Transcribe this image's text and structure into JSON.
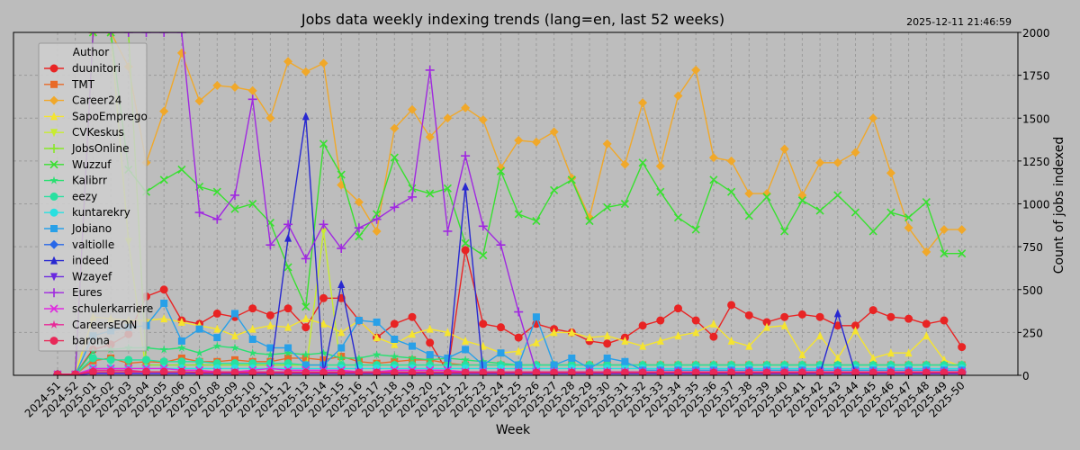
{
  "chart_data": {
    "type": "line",
    "title": "Jobs data weekly indexing trends (lang=en, last 52 weeks)",
    "timestamp": "2025-12-11 21:46:59",
    "xlabel": "Week",
    "ylabel": "Count of jobs indexed",
    "ylim": [
      0,
      2000
    ],
    "yticks": [
      0,
      250,
      500,
      750,
      1000,
      1250,
      1500,
      1750,
      2000
    ],
    "grid": true,
    "legend_title": "Author",
    "legend_position": "upper-left",
    "categories": [
      "2024-51",
      "2024-52",
      "2025-01",
      "2025-02",
      "2025-03",
      "2025-04",
      "2025-05",
      "2025-06",
      "2025-07",
      "2025-08",
      "2025-09",
      "2025-10",
      "2025-11",
      "2025-12",
      "2025-13",
      "2025-14",
      "2025-15",
      "2025-16",
      "2025-17",
      "2025-18",
      "2025-19",
      "2025-20",
      "2025-21",
      "2025-22",
      "2025-23",
      "2025-24",
      "2025-25",
      "2025-26",
      "2025-27",
      "2025-28",
      "2025-29",
      "2025-30",
      "2025-31",
      "2025-32",
      "2025-33",
      "2025-34",
      "2025-35",
      "2025-36",
      "2025-37",
      "2025-38",
      "2025-39",
      "2025-40",
      "2025-41",
      "2025-42",
      "2025-43",
      "2025-44",
      "2025-45",
      "2025-46",
      "2025-47",
      "2025-48",
      "2025-49",
      "2025-50"
    ],
    "series": [
      {
        "name": "duunitori",
        "color": "#e82424",
        "marker": "circle",
        "values": [
          5,
          5,
          150,
          180,
          240,
          460,
          500,
          320,
          300,
          360,
          340,
          390,
          350,
          390,
          280,
          450,
          450,
          320,
          220,
          300,
          340,
          190,
          20,
          730,
          300,
          280,
          220,
          300,
          270,
          250,
          200,
          185,
          220,
          290,
          320,
          390,
          320,
          225,
          410,
          350,
          310,
          340,
          355,
          340,
          290,
          290,
          380,
          340,
          330,
          300,
          320,
          165
        ]
      },
      {
        "name": "TMT",
        "color": "#e86a28",
        "marker": "square",
        "values": [
          5,
          5,
          85,
          100,
          70,
          80,
          75,
          100,
          80,
          80,
          90,
          80,
          80,
          100,
          100,
          90,
          110,
          80,
          70,
          80,
          90,
          90,
          70,
          60,
          60,
          60,
          60,
          60,
          60,
          60,
          60,
          60,
          60,
          60,
          60,
          60,
          60,
          60,
          60,
          60,
          60,
          60,
          60,
          60,
          60,
          60,
          60,
          60,
          60,
          60,
          60,
          60
        ]
      },
      {
        "name": "Career24",
        "color": "#f0a82a",
        "marker": "diamond",
        "values": [
          5,
          5,
          2000,
          2000,
          1800,
          1240,
          1540,
          1880,
          1600,
          1690,
          1680,
          1660,
          1500,
          1830,
          1770,
          1820,
          1110,
          1010,
          840,
          1440,
          1550,
          1390,
          1500,
          1560,
          1490,
          1210,
          1370,
          1360,
          1420,
          1150,
          920,
          1350,
          1230,
          1590,
          1220,
          1630,
          1780,
          1270,
          1250,
          1060,
          1060,
          1320,
          1050,
          1240,
          1240,
          1300,
          1500,
          1180,
          860,
          720,
          850,
          850
        ]
      },
      {
        "name": "SapoEmprego",
        "color": "#f5e430",
        "marker": "triangle-up",
        "values": [
          5,
          5,
          340,
          330,
          320,
          320,
          330,
          310,
          290,
          270,
          230,
          270,
          290,
          280,
          330,
          300,
          250,
          320,
          220,
          180,
          240,
          270,
          250,
          200,
          170,
          130,
          140,
          190,
          250,
          250,
          220,
          230,
          200,
          170,
          200,
          230,
          250,
          300,
          200,
          170,
          280,
          290,
          120,
          230,
          100,
          260,
          100,
          130,
          130,
          230,
          90,
          50
        ]
      },
      {
        "name": "CVKeskus",
        "color": "#c8ec30",
        "marker": "triangle-down",
        "values": [
          5,
          5,
          2000,
          2000,
          780,
          20,
          20,
          20,
          20,
          20,
          20,
          20,
          20,
          20,
          20,
          840,
          20,
          20,
          20,
          20,
          20,
          20,
          20,
          20,
          20,
          20,
          20,
          20,
          20,
          20,
          20,
          20,
          20,
          20,
          20,
          20,
          20,
          20,
          20,
          20,
          20,
          20,
          20,
          20,
          20,
          20,
          20,
          20,
          20,
          20,
          20,
          20
        ]
      },
      {
        "name": "JobsOnline",
        "color": "#88e828",
        "marker": "plus",
        "values": [
          5,
          5,
          2000,
          2000,
          2000,
          60,
          60,
          60,
          60,
          60,
          60,
          60,
          60,
          60,
          60,
          60,
          60,
          60,
          60,
          60,
          60,
          60,
          60,
          60,
          60,
          60,
          60,
          60,
          60,
          60,
          60,
          60,
          60,
          60,
          60,
          60,
          60,
          60,
          60,
          60,
          60,
          60,
          60,
          60,
          60,
          60,
          60,
          60,
          60,
          60,
          60,
          60
        ]
      },
      {
        "name": "Wuzzuf",
        "color": "#38e030",
        "marker": "x",
        "values": [
          5,
          5,
          2000,
          2000,
          1200,
          1070,
          1140,
          1200,
          1100,
          1070,
          970,
          1000,
          890,
          630,
          400,
          1350,
          1170,
          810,
          940,
          1270,
          1090,
          1060,
          1090,
          770,
          700,
          1190,
          940,
          900,
          1080,
          1140,
          900,
          980,
          1000,
          1240,
          1070,
          920,
          850,
          1140,
          1070,
          930,
          1040,
          840,
          1020,
          960,
          1050,
          950,
          840,
          950,
          920,
          1010,
          710,
          710
        ]
      },
      {
        "name": "Kalibrr",
        "color": "#28e070",
        "marker": "star",
        "values": [
          5,
          5,
          140,
          150,
          160,
          160,
          150,
          160,
          130,
          170,
          160,
          130,
          120,
          130,
          120,
          130,
          100,
          100,
          120,
          110,
          100,
          90,
          100,
          90,
          80,
          70,
          60,
          60,
          60,
          60,
          60,
          60,
          60,
          60,
          60,
          60,
          60,
          60,
          60,
          60,
          60,
          60,
          60,
          60,
          60,
          60,
          60,
          60,
          60,
          60,
          60,
          60
        ]
      },
      {
        "name": "eezy",
        "color": "#28e0a0",
        "marker": "hexagon",
        "values": [
          5,
          5,
          100,
          90,
          90,
          90,
          80,
          80,
          80,
          70,
          70,
          70,
          70,
          70,
          60,
          60,
          60,
          60,
          60,
          60,
          60,
          60,
          60,
          60,
          60,
          60,
          60,
          60,
          60,
          60,
          60,
          60,
          60,
          60,
          60,
          60,
          60,
          60,
          60,
          60,
          60,
          60,
          60,
          60,
          60,
          60,
          60,
          60,
          60,
          60,
          60,
          60
        ]
      },
      {
        "name": "kuntarekry",
        "color": "#28e0e0",
        "marker": "circle",
        "values": [
          5,
          5,
          40,
          40,
          40,
          40,
          40,
          40,
          40,
          40,
          40,
          40,
          40,
          40,
          40,
          40,
          40,
          40,
          40,
          40,
          40,
          40,
          40,
          40,
          40,
          40,
          40,
          40,
          40,
          40,
          40,
          40,
          40,
          40,
          40,
          40,
          40,
          40,
          40,
          40,
          40,
          40,
          40,
          40,
          40,
          40,
          40,
          40,
          40,
          40,
          40,
          40
        ]
      },
      {
        "name": "Jobiano",
        "color": "#28a0e8",
        "marker": "square",
        "values": [
          5,
          5,
          230,
          260,
          280,
          290,
          420,
          200,
          270,
          220,
          360,
          210,
          160,
          160,
          60,
          60,
          160,
          320,
          310,
          210,
          170,
          120,
          100,
          150,
          60,
          130,
          60,
          340,
          60,
          100,
          40,
          100,
          80,
          30,
          30,
          30,
          30,
          30,
          30,
          30,
          30,
          30,
          30,
          30,
          30,
          30,
          30,
          30,
          30,
          30,
          30,
          30
        ]
      },
      {
        "name": "valtiolle",
        "color": "#2868e8",
        "marker": "diamond",
        "values": [
          5,
          5,
          10,
          10,
          10,
          10,
          10,
          10,
          10,
          10,
          10,
          10,
          10,
          10,
          10,
          10,
          10,
          10,
          10,
          10,
          10,
          10,
          10,
          10,
          10,
          10,
          10,
          10,
          10,
          10,
          10,
          10,
          10,
          10,
          10,
          10,
          10,
          10,
          10,
          10,
          10,
          10,
          10,
          10,
          10,
          10,
          10,
          10,
          10,
          10,
          10,
          10
        ]
      },
      {
        "name": "indeed",
        "color": "#2828d0",
        "marker": "triangle-up",
        "values": [
          5,
          5,
          10,
          10,
          10,
          10,
          10,
          10,
          10,
          10,
          10,
          10,
          10,
          800,
          1510,
          10,
          530,
          10,
          10,
          10,
          10,
          10,
          10,
          1100,
          10,
          10,
          10,
          10,
          10,
          10,
          10,
          10,
          10,
          10,
          10,
          10,
          10,
          10,
          10,
          10,
          10,
          10,
          10,
          10,
          360,
          10,
          10,
          10,
          10,
          10,
          10,
          10
        ]
      },
      {
        "name": "Wzayef",
        "color": "#6a28e0",
        "marker": "triangle-down",
        "values": [
          5,
          5,
          10,
          10,
          10,
          10,
          10,
          10,
          10,
          10,
          10,
          10,
          10,
          10,
          10,
          10,
          10,
          10,
          10,
          10,
          10,
          10,
          10,
          10,
          10,
          10,
          10,
          10,
          10,
          10,
          10,
          10,
          10,
          10,
          10,
          10,
          10,
          10,
          10,
          10,
          10,
          10,
          10,
          10,
          10,
          10,
          10,
          10,
          10,
          10,
          10,
          10
        ]
      },
      {
        "name": "Eures",
        "color": "#a028e0",
        "marker": "plus",
        "values": [
          5,
          5,
          2000,
          2000,
          2000,
          2000,
          2000,
          2000,
          950,
          910,
          1050,
          1610,
          760,
          880,
          680,
          880,
          740,
          860,
          910,
          980,
          1040,
          1780,
          840,
          1280,
          870,
          760,
          370,
          20,
          20,
          20,
          20,
          20,
          20,
          20,
          20,
          20,
          20,
          20,
          20,
          20,
          20,
          20,
          20,
          20,
          20,
          20,
          20,
          20,
          20,
          20,
          20,
          20
        ]
      },
      {
        "name": "schulerkarriere",
        "color": "#e028e0",
        "marker": "x",
        "values": [
          5,
          5,
          40,
          40,
          40,
          40,
          40,
          30,
          30,
          20,
          20,
          30,
          40,
          30,
          30,
          30,
          30,
          20,
          20,
          30,
          30,
          30,
          30,
          20,
          20,
          20,
          20,
          20,
          20,
          20,
          20,
          20,
          20,
          20,
          20,
          20,
          20,
          20,
          20,
          20,
          20,
          20,
          20,
          20,
          20,
          20,
          20,
          20,
          20,
          20,
          20,
          20
        ]
      },
      {
        "name": "CareersEON",
        "color": "#e82898",
        "marker": "star",
        "values": [
          5,
          5,
          30,
          30,
          30,
          20,
          20,
          20,
          20,
          20,
          20,
          20,
          20,
          20,
          20,
          20,
          20,
          20,
          20,
          20,
          20,
          20,
          20,
          20,
          20,
          20,
          20,
          20,
          20,
          20,
          20,
          20,
          20,
          20,
          20,
          20,
          20,
          20,
          20,
          20,
          20,
          20,
          20,
          20,
          20,
          20,
          20,
          20,
          20,
          20,
          20,
          20
        ]
      },
      {
        "name": "barona",
        "color": "#e82858",
        "marker": "hexagon",
        "values": [
          5,
          5,
          20,
          20,
          20,
          20,
          20,
          20,
          15,
          15,
          15,
          15,
          15,
          15,
          15,
          15,
          15,
          15,
          15,
          15,
          15,
          15,
          15,
          15,
          15,
          15,
          15,
          15,
          15,
          15,
          15,
          15,
          15,
          15,
          15,
          15,
          15,
          15,
          15,
          15,
          15,
          15,
          15,
          15,
          15,
          15,
          15,
          15,
          15,
          15,
          15,
          15
        ]
      }
    ]
  }
}
